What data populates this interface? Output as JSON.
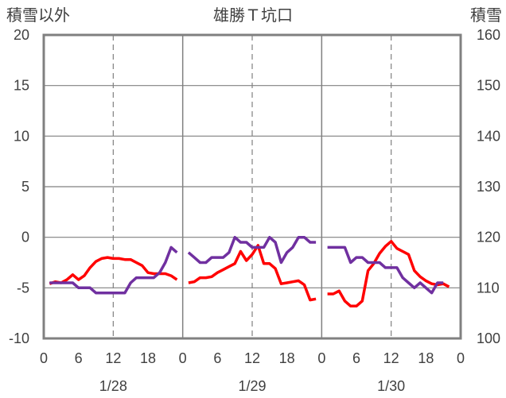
{
  "chart_data": {
    "type": "line",
    "title": "雄勝Ｔ坑口",
    "ylabel_left": "積雪以外",
    "ylabel_right": "積雪",
    "ylim_left": [
      -10,
      20
    ],
    "yticks_left": [
      20,
      15,
      10,
      5,
      0,
      -5,
      -10
    ],
    "ylim_right": [
      100,
      160
    ],
    "yticks_right": [
      160,
      150,
      140,
      130,
      120,
      110,
      100
    ],
    "xlim_hours": [
      0,
      72
    ],
    "x_tick_labels": [
      "0",
      "6",
      "12",
      "18",
      "0",
      "6",
      "12",
      "18",
      "0",
      "6",
      "12",
      "18",
      "0"
    ],
    "date_labels": [
      "1/28",
      "1/29",
      "1/30"
    ],
    "grid": true,
    "series": [
      {
        "axis": "left",
        "color": "#ff0000",
        "segments": [
          [
            [
              1,
              -4.6
            ],
            [
              2,
              -4.4
            ],
            [
              3,
              -4.5
            ],
            [
              4,
              -4.2
            ],
            [
              5,
              -3.7
            ],
            [
              6,
              -4.2
            ],
            [
              7,
              -3.8
            ],
            [
              8,
              -3.0
            ],
            [
              9,
              -2.4
            ],
            [
              10,
              -2.1
            ],
            [
              11,
              -2.0
            ],
            [
              12,
              -2.1
            ],
            [
              13,
              -2.1
            ],
            [
              14,
              -2.2
            ],
            [
              15,
              -2.2
            ],
            [
              16,
              -2.5
            ],
            [
              17,
              -2.8
            ],
            [
              18,
              -3.5
            ],
            [
              19,
              -3.6
            ],
            [
              20,
              -3.6
            ],
            [
              21,
              -3.6
            ],
            [
              22,
              -3.8
            ],
            [
              23,
              -4.2
            ]
          ],
          [
            [
              25,
              -4.5
            ],
            [
              26,
              -4.4
            ],
            [
              27,
              -4.0
            ],
            [
              28,
              -4.0
            ],
            [
              29,
              -3.9
            ],
            [
              30,
              -3.5
            ],
            [
              31,
              -3.2
            ],
            [
              32,
              -2.9
            ],
            [
              33,
              -2.6
            ],
            [
              34,
              -1.4
            ],
            [
              35,
              -2.3
            ],
            [
              36,
              -1.7
            ],
            [
              37,
              -0.8
            ],
            [
              38,
              -2.6
            ],
            [
              39,
              -2.6
            ],
            [
              40,
              -3.1
            ],
            [
              41,
              -4.6
            ],
            [
              42,
              -4.5
            ],
            [
              43,
              -4.4
            ],
            [
              44,
              -4.3
            ],
            [
              45,
              -4.7
            ],
            [
              46,
              -6.2
            ],
            [
              47,
              -6.1
            ]
          ],
          [
            [
              49,
              -5.6
            ],
            [
              50,
              -5.6
            ],
            [
              51,
              -5.3
            ],
            [
              52,
              -6.3
            ],
            [
              53,
              -6.8
            ],
            [
              54,
              -6.8
            ],
            [
              55,
              -6.3
            ],
            [
              56,
              -3.3
            ],
            [
              57,
              -2.6
            ],
            [
              58,
              -1.6
            ],
            [
              59,
              -0.9
            ],
            [
              60,
              -0.4
            ],
            [
              61,
              -1.1
            ],
            [
              62,
              -1.4
            ],
            [
              63,
              -1.7
            ],
            [
              64,
              -3.3
            ],
            [
              65,
              -3.9
            ],
            [
              66,
              -4.3
            ],
            [
              67,
              -4.6
            ],
            [
              68,
              -4.7
            ],
            [
              69,
              -4.6
            ],
            [
              70,
              -4.9
            ]
          ]
        ]
      },
      {
        "axis": "right",
        "color": "#7030a0",
        "segments": [
          [
            [
              1,
              111
            ],
            [
              2,
              111
            ],
            [
              3,
              111
            ],
            [
              4,
              111
            ],
            [
              5,
              111
            ],
            [
              6,
              110
            ],
            [
              7,
              110
            ],
            [
              8,
              110
            ],
            [
              9,
              109
            ],
            [
              10,
              109
            ],
            [
              11,
              109
            ],
            [
              12,
              109
            ],
            [
              13,
              109
            ],
            [
              14,
              109
            ],
            [
              15,
              111
            ],
            [
              16,
              112
            ],
            [
              17,
              112
            ],
            [
              18,
              112
            ],
            [
              19,
              112
            ],
            [
              20,
              113
            ],
            [
              21,
              115
            ],
            [
              22,
              118
            ],
            [
              23,
              117
            ]
          ],
          [
            [
              25,
              117
            ],
            [
              26,
              116
            ],
            [
              27,
              115
            ],
            [
              28,
              115
            ],
            [
              29,
              116
            ],
            [
              30,
              116
            ],
            [
              31,
              116
            ],
            [
              32,
              117
            ],
            [
              33,
              120
            ],
            [
              34,
              119
            ],
            [
              35,
              119
            ],
            [
              36,
              118
            ],
            [
              37,
              118
            ],
            [
              38,
              118
            ],
            [
              39,
              120
            ],
            [
              40,
              119
            ],
            [
              41,
              115
            ],
            [
              42,
              117
            ],
            [
              43,
              118
            ],
            [
              44,
              120
            ],
            [
              45,
              120
            ],
            [
              46,
              119
            ],
            [
              47,
              119
            ]
          ],
          [
            [
              49,
              118
            ],
            [
              50,
              118
            ],
            [
              51,
              118
            ],
            [
              52,
              118
            ],
            [
              53,
              115
            ],
            [
              54,
              116
            ],
            [
              55,
              116
            ],
            [
              56,
              115
            ],
            [
              57,
              115
            ],
            [
              58,
              115
            ],
            [
              59,
              114
            ],
            [
              60,
              114
            ],
            [
              61,
              114
            ],
            [
              62,
              112
            ],
            [
              63,
              111
            ],
            [
              64,
              110
            ],
            [
              65,
              111
            ],
            [
              66,
              110
            ],
            [
              67,
              109
            ],
            [
              68,
              111
            ],
            [
              69,
              111
            ]
          ]
        ]
      }
    ]
  }
}
